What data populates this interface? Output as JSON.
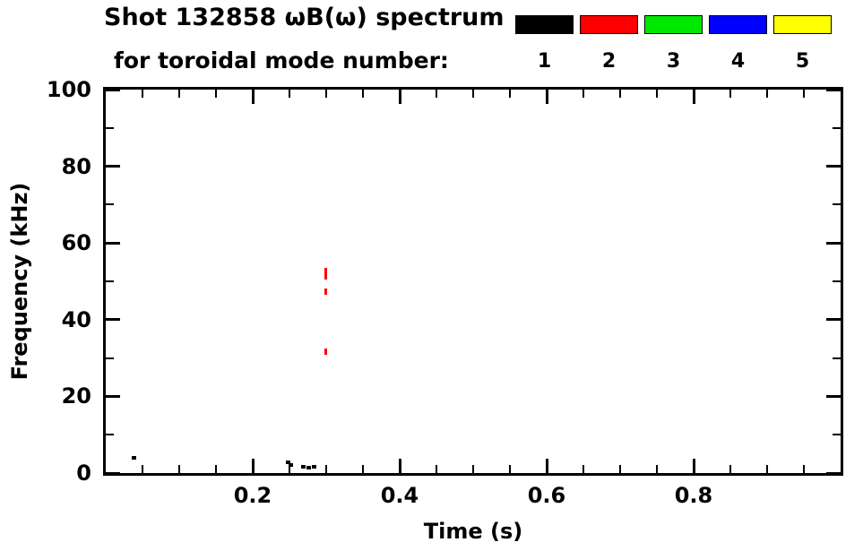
{
  "header": {
    "title": "Shot 132858 ωB(ω) spectrum",
    "subtitle": "for toroidal mode number:"
  },
  "chart_data": {
    "type": "scatter",
    "title": "Shot 132858 ωB(ω) spectrum",
    "subtitle": "for toroidal mode number:",
    "xlabel": "Time (s)",
    "ylabel": "Frequency (kHz)",
    "xlim": [
      0,
      1.0
    ],
    "ylim": [
      0,
      100
    ],
    "x_major_ticks": [
      0.2,
      0.4,
      0.6,
      0.8
    ],
    "x_minor_step": 0.05,
    "y_major_ticks": [
      0,
      20,
      40,
      60,
      80,
      100
    ],
    "y_minor_step": 10,
    "grid": false,
    "legend": {
      "position": "top-right",
      "entries": [
        {
          "label": "1",
          "color": "#000000"
        },
        {
          "label": "2",
          "color": "#ff0000"
        },
        {
          "label": "3",
          "color": "#00e800"
        },
        {
          "label": "4",
          "color": "#0000ff"
        },
        {
          "label": "5",
          "color": "#ffff00"
        }
      ]
    },
    "series": [
      {
        "name": "n=1",
        "color": "#000000",
        "marker": {
          "w": 5,
          "h": 4
        },
        "points": [
          [
            0.039,
            3.9
          ],
          [
            0.248,
            2.8
          ],
          [
            0.252,
            2.2
          ],
          [
            0.269,
            1.6
          ],
          [
            0.276,
            1.4
          ],
          [
            0.284,
            1.6
          ]
        ]
      },
      {
        "name": "n=2",
        "color": "#ff0000",
        "marker": {
          "w": 3,
          "h": 7
        },
        "points": [
          [
            0.299,
            52.8
          ],
          [
            0.299,
            51.3
          ],
          [
            0.299,
            47.2
          ],
          [
            0.299,
            31.6
          ]
        ]
      }
    ]
  }
}
